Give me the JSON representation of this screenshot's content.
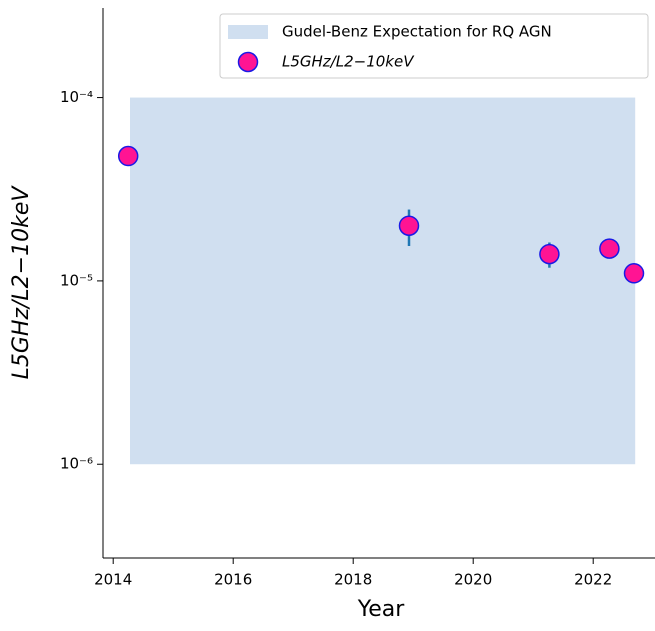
{
  "chart_data": {
    "type": "scatter",
    "xlabel": "Year",
    "ylabel": "L5GHz/L2−10keV",
    "xlim": [
      2013.83,
      2023.03
    ],
    "xticks": [
      2014,
      2016,
      2018,
      2020,
      2022
    ],
    "ylim": [
      3.08e-07,
      0.000308
    ],
    "yticks": [
      {
        "value": 1e-06,
        "label": "10⁻⁶"
      },
      {
        "value": 1e-05,
        "label": "10⁻⁵"
      },
      {
        "value": 0.0001,
        "label": "10⁻⁴"
      }
    ],
    "log_y": true,
    "legend": "upper right",
    "band": {
      "name": "Gudel-Benz Expectation for RQ AGN",
      "color": "#d0dff0",
      "x": [
        2014.28,
        2022.7
      ],
      "y": [
        1e-06,
        0.0001
      ]
    },
    "series": [
      {
        "name": "L5GHz/L2−10keV",
        "color": "#ff1493",
        "edge_color": "#1a1ae6",
        "error_color": "#1f77b4",
        "x": [
          2014.25,
          2018.93,
          2021.27,
          2022.27,
          2022.68
        ],
        "values": [
          4.8e-05,
          2e-05,
          1.4e-05,
          1.5e-05,
          1.1e-05
        ],
        "errors": [
          null,
          4.5e-06,
          2.2e-06,
          null,
          null
        ]
      }
    ]
  }
}
